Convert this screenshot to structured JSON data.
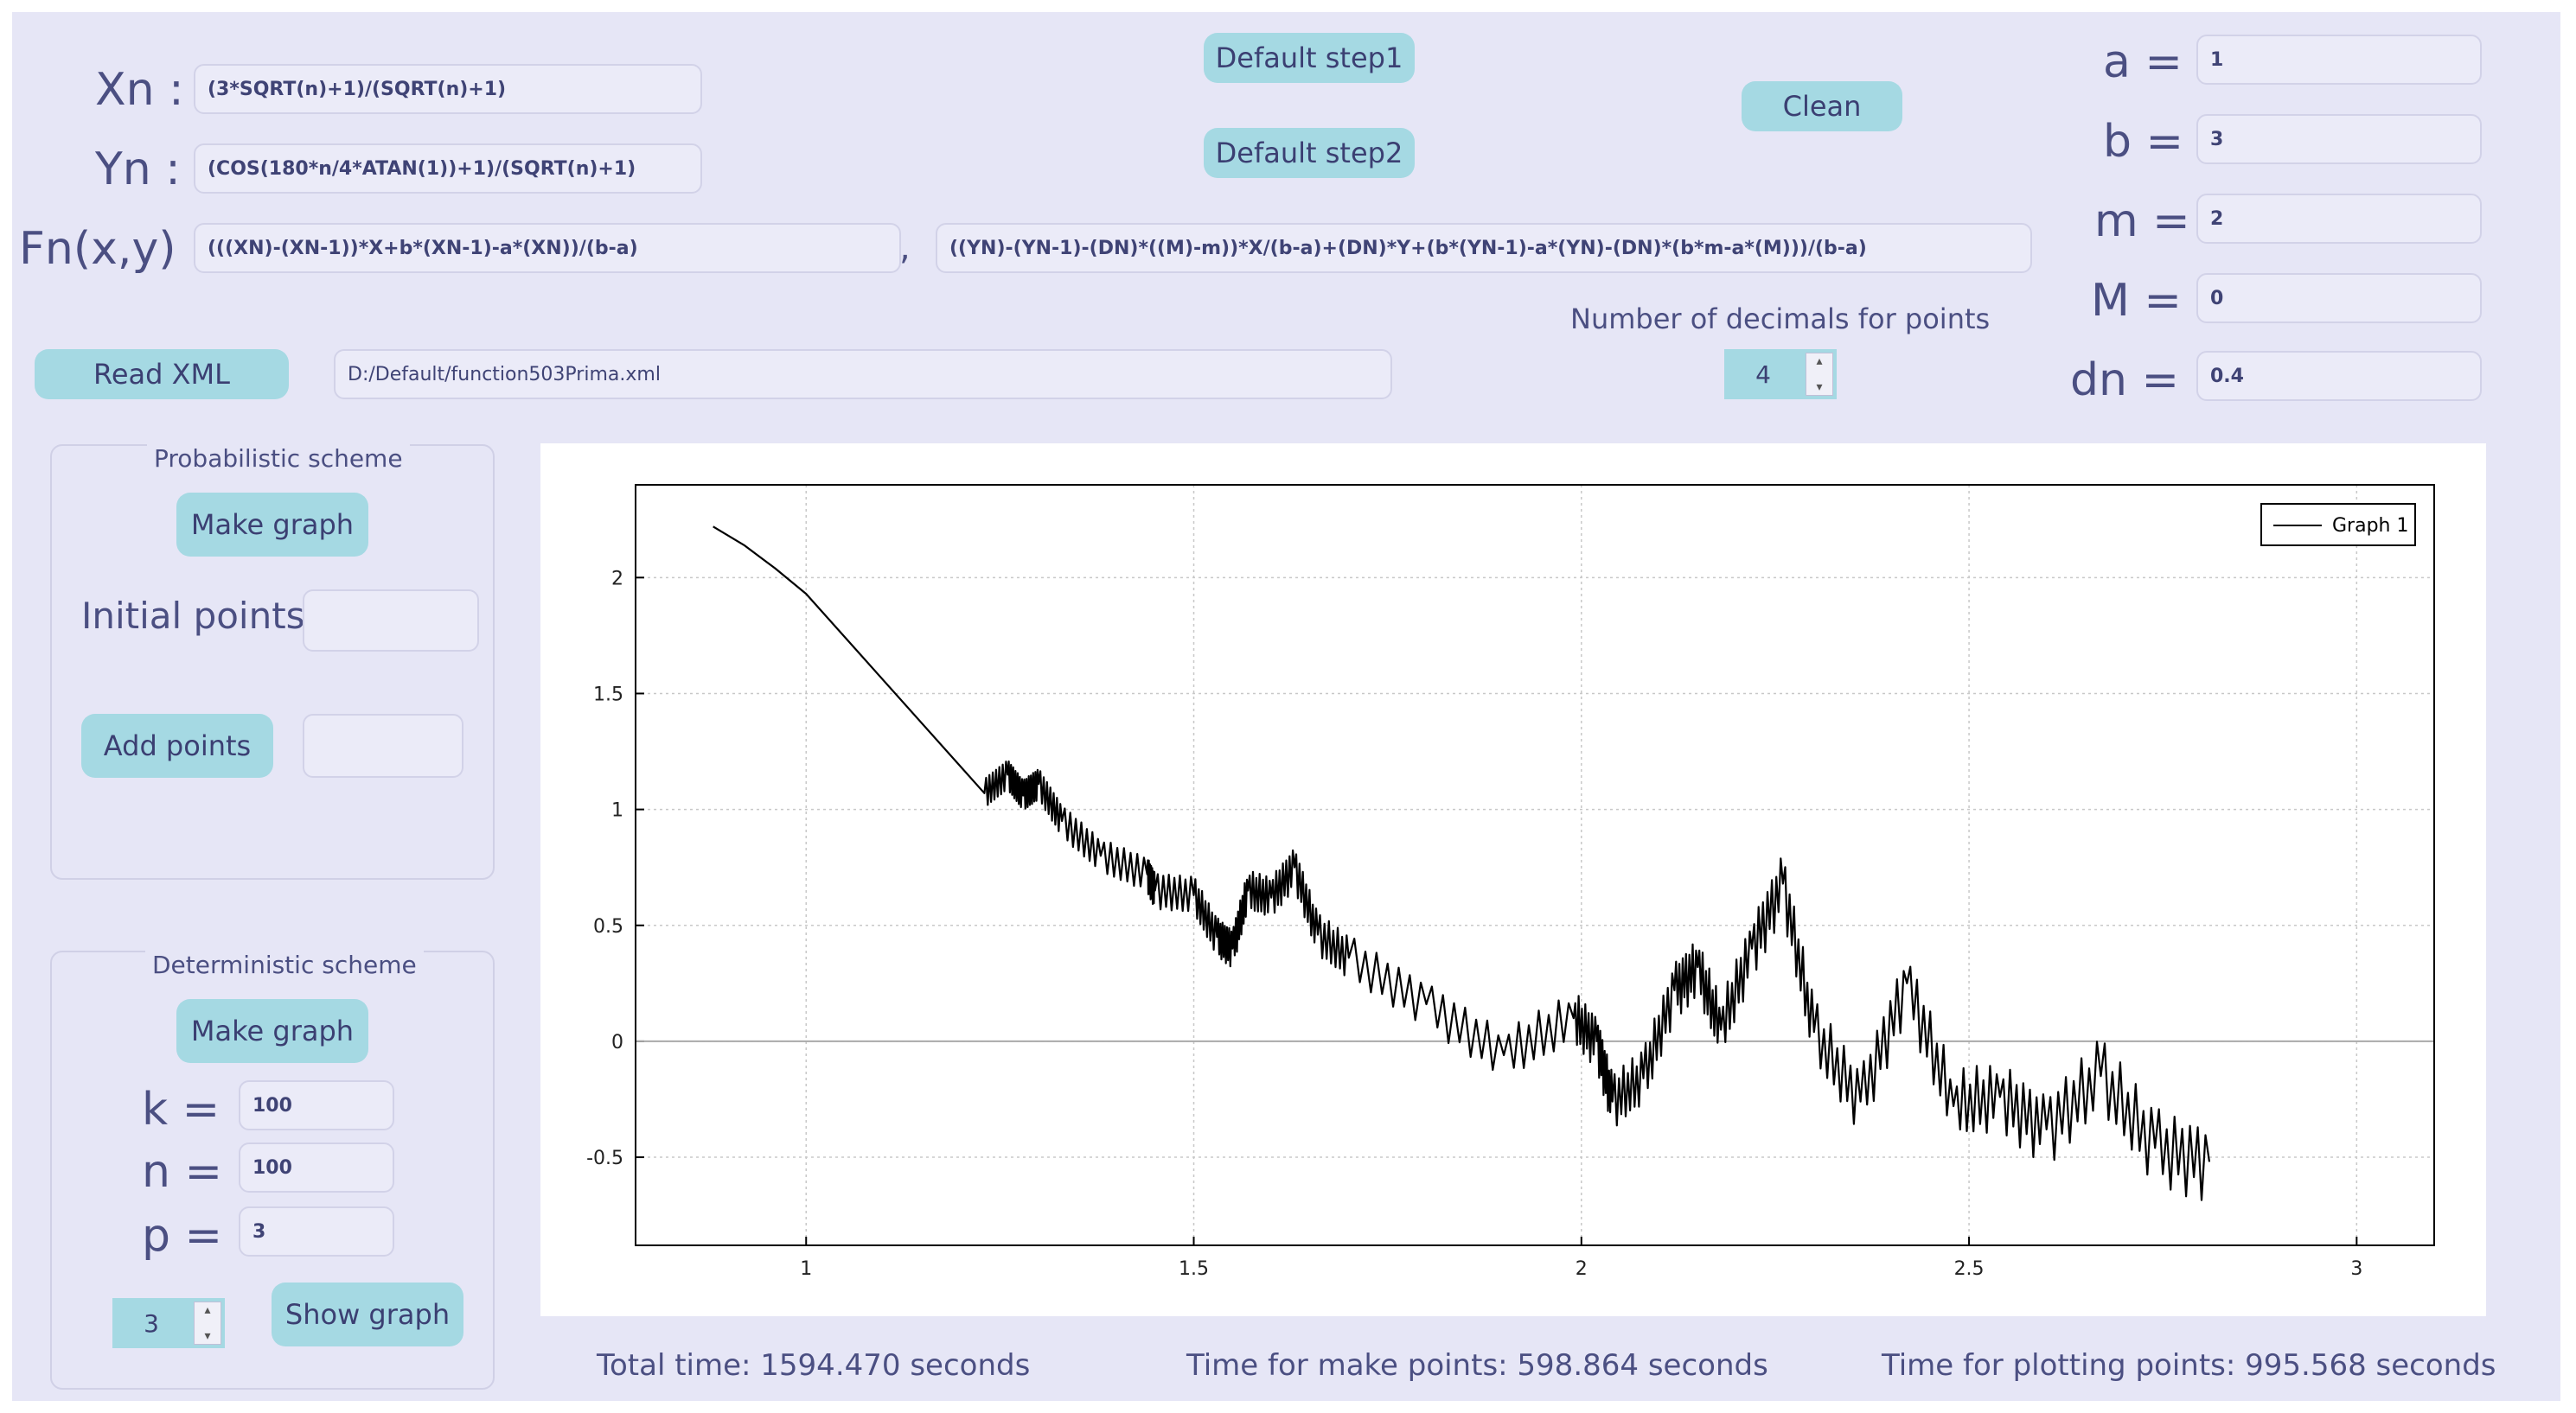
{
  "formulas": {
    "xn_label": "Xn :",
    "xn_value": "(3*SQRT(n)+1)/(SQRT(n)+1)",
    "yn_label": "Yn :",
    "yn_value": "(COS(180*n/4*ATAN(1))+1)/(SQRT(n)+1)",
    "fn_label": "Fn(x,y)",
    "fn_x_value": "(((XN)-(XN-1))*X+b*(XN-1)-a*(XN))/(b-a)",
    "fn_separator": ",",
    "fn_y_value": "((YN)-(YN-1)-(DN)*((M)-m))*X/(b-a)+(DN)*Y+(b*(YN-1)-a*(YN)-(DN)*(b*m-a*(M)))/(b-a)"
  },
  "buttons": {
    "default_step1": "Default step1",
    "default_step2": "Default step2",
    "clean": "Clean",
    "read_xml": "Read XML"
  },
  "xml_path": "D:/Default/function503Prima.xml",
  "decimals": {
    "label": "Number of decimals for points",
    "value": "4"
  },
  "params": [
    {
      "label": "a =",
      "value": "1"
    },
    {
      "label": "b =",
      "value": "3"
    },
    {
      "label": "m =",
      "value": "2"
    },
    {
      "label": "M =",
      "value": "0"
    },
    {
      "label": "dn =",
      "value": "0.4"
    }
  ],
  "probabilistic": {
    "title": "Probabilistic scheme",
    "make_graph": "Make graph",
    "initial_points_label": "Initial points:",
    "initial_points_value": "",
    "add_points": "Add points",
    "add_points_value": ""
  },
  "deterministic": {
    "title": "Deterministic scheme",
    "make_graph": "Make graph",
    "k_label": "k =",
    "k_value": "100",
    "n_label": "n =",
    "n_value": "100",
    "p_label": "p =",
    "p_value": "3",
    "spin_value": "3",
    "show_graph": "Show graph"
  },
  "footer": {
    "total_time": "Total time: 1594.470 seconds",
    "make_points_time": "Time for make points: 598.864 seconds",
    "plotting_time": "Time for plotting points: 995.568 seconds"
  },
  "chart_data": {
    "type": "line",
    "title": "",
    "xlabel": "",
    "ylabel": "",
    "xlim": [
      0.78,
      3.1
    ],
    "ylim": [
      -0.88,
      2.4
    ],
    "x_ticks": [
      1,
      1.5,
      2,
      2.5,
      3
    ],
    "y_ticks": [
      -0.5,
      0,
      0.5,
      1,
      1.5,
      2
    ],
    "x_tick_labels": [
      "1",
      "1.5",
      "2",
      "2.5",
      "3"
    ],
    "y_tick_labels": [
      "-0.5",
      "0",
      "0.5",
      "1",
      "1.5",
      "2"
    ],
    "grid": true,
    "zero_line": true,
    "legend_position": "top-right",
    "series": [
      {
        "name": "Graph 1",
        "color": "#000000",
        "points": [
          [
            0.88,
            2.22
          ],
          [
            0.92,
            2.14
          ],
          [
            0.96,
            2.04
          ],
          [
            1.0,
            1.93
          ],
          [
            1.23,
            1.07
          ],
          [
            1.26,
            1.15
          ],
          [
            1.28,
            1.06
          ],
          [
            1.3,
            1.11
          ],
          [
            1.33,
            0.95
          ],
          [
            1.38,
            0.8
          ],
          [
            1.44,
            0.72
          ],
          [
            1.45,
            0.65
          ],
          [
            1.5,
            0.63
          ],
          [
            1.53,
            0.45
          ],
          [
            1.55,
            0.4
          ],
          [
            1.57,
            0.65
          ],
          [
            1.6,
            0.62
          ],
          [
            1.63,
            0.75
          ],
          [
            1.66,
            0.46
          ],
          [
            1.7,
            0.36
          ],
          [
            1.8,
            0.16
          ],
          [
            1.9,
            -0.06
          ],
          [
            1.99,
            0.1
          ],
          [
            2.02,
            0.0
          ],
          [
            2.04,
            -0.26
          ],
          [
            2.08,
            -0.16
          ],
          [
            2.12,
            0.22
          ],
          [
            2.15,
            0.32
          ],
          [
            2.18,
            0.05
          ],
          [
            2.22,
            0.4
          ],
          [
            2.26,
            0.68
          ],
          [
            2.3,
            0.04
          ],
          [
            2.36,
            -0.26
          ],
          [
            2.42,
            0.25
          ],
          [
            2.48,
            -0.28
          ],
          [
            2.54,
            -0.24
          ],
          [
            2.6,
            -0.38
          ],
          [
            2.67,
            -0.15
          ],
          [
            2.74,
            -0.46
          ],
          [
            2.81,
            -0.52
          ]
        ]
      }
    ]
  }
}
